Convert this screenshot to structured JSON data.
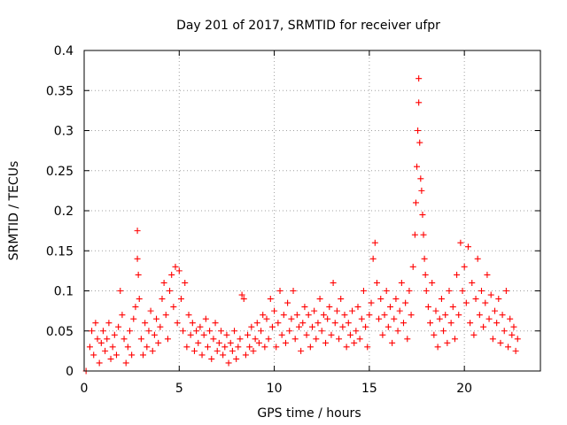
{
  "chart_data": {
    "type": "scatter",
    "title": "Day 201 of 2017, SRMTID for receiver ufpr",
    "xlabel": "GPS time / hours",
    "ylabel": "SRMTID / TECUs",
    "xlim": [
      0,
      24
    ],
    "ylim": [
      0,
      0.4
    ],
    "xticks": [
      0,
      5,
      10,
      15,
      20
    ],
    "xtick_labels": [
      "0",
      "5",
      "10",
      "15",
      "20"
    ],
    "yticks": [
      0,
      0.05,
      0.1,
      0.15,
      0.2,
      0.25,
      0.3,
      0.35,
      0.4
    ],
    "ytick_labels": [
      "0",
      "0.05",
      "0.1",
      "0.15",
      "0.2",
      "0.25",
      "0.3",
      "0.35",
      "0.4"
    ],
    "grid": true,
    "marker": "plus",
    "color": "#ff0000",
    "series": [
      {
        "name": "SRMTID",
        "points": [
          [
            0.1,
            0.0
          ],
          [
            0.3,
            0.03
          ],
          [
            0.4,
            0.05
          ],
          [
            0.5,
            0.02
          ],
          [
            0.6,
            0.06
          ],
          [
            0.7,
            0.04
          ],
          [
            0.8,
            0.01
          ],
          [
            0.9,
            0.035
          ],
          [
            1.0,
            0.05
          ],
          [
            1.1,
            0.025
          ],
          [
            1.2,
            0.04
          ],
          [
            1.3,
            0.06
          ],
          [
            1.4,
            0.015
          ],
          [
            1.5,
            0.03
          ],
          [
            1.6,
            0.045
          ],
          [
            1.7,
            0.02
          ],
          [
            1.8,
            0.055
          ],
          [
            1.9,
            0.1
          ],
          [
            2.0,
            0.07
          ],
          [
            2.1,
            0.04
          ],
          [
            2.2,
            0.01
          ],
          [
            2.3,
            0.03
          ],
          [
            2.4,
            0.05
          ],
          [
            2.5,
            0.02
          ],
          [
            2.6,
            0.065
          ],
          [
            2.7,
            0.08
          ],
          [
            2.8,
            0.175
          ],
          [
            2.8,
            0.14
          ],
          [
            2.85,
            0.12
          ],
          [
            2.9,
            0.09
          ],
          [
            3.0,
            0.04
          ],
          [
            3.1,
            0.02
          ],
          [
            3.2,
            0.06
          ],
          [
            3.3,
            0.03
          ],
          [
            3.4,
            0.05
          ],
          [
            3.5,
            0.075
          ],
          [
            3.6,
            0.025
          ],
          [
            3.7,
            0.045
          ],
          [
            3.8,
            0.065
          ],
          [
            3.9,
            0.035
          ],
          [
            4.0,
            0.055
          ],
          [
            4.1,
            0.09
          ],
          [
            4.2,
            0.11
          ],
          [
            4.3,
            0.07
          ],
          [
            4.4,
            0.04
          ],
          [
            4.5,
            0.1
          ],
          [
            4.6,
            0.12
          ],
          [
            4.7,
            0.08
          ],
          [
            4.8,
            0.13
          ],
          [
            4.9,
            0.06
          ],
          [
            5.0,
            0.125
          ],
          [
            5.1,
            0.09
          ],
          [
            5.2,
            0.05
          ],
          [
            5.3,
            0.11
          ],
          [
            5.4,
            0.03
          ],
          [
            5.5,
            0.07
          ],
          [
            5.6,
            0.045
          ],
          [
            5.7,
            0.06
          ],
          [
            5.8,
            0.025
          ],
          [
            5.9,
            0.05
          ],
          [
            6.0,
            0.035
          ],
          [
            6.1,
            0.055
          ],
          [
            6.2,
            0.02
          ],
          [
            6.3,
            0.045
          ],
          [
            6.4,
            0.065
          ],
          [
            6.5,
            0.03
          ],
          [
            6.6,
            0.05
          ],
          [
            6.7,
            0.015
          ],
          [
            6.8,
            0.04
          ],
          [
            6.9,
            0.06
          ],
          [
            7.0,
            0.025
          ],
          [
            7.1,
            0.035
          ],
          [
            7.2,
            0.05
          ],
          [
            7.3,
            0.02
          ],
          [
            7.4,
            0.03
          ],
          [
            7.5,
            0.045
          ],
          [
            7.6,
            0.01
          ],
          [
            7.7,
            0.035
          ],
          [
            7.8,
            0.025
          ],
          [
            7.9,
            0.05
          ],
          [
            8.0,
            0.015
          ],
          [
            8.1,
            0.03
          ],
          [
            8.2,
            0.04
          ],
          [
            8.3,
            0.095
          ],
          [
            8.4,
            0.09
          ],
          [
            8.5,
            0.02
          ],
          [
            8.6,
            0.045
          ],
          [
            8.7,
            0.03
          ],
          [
            8.8,
            0.055
          ],
          [
            8.9,
            0.025
          ],
          [
            9.0,
            0.04
          ],
          [
            9.1,
            0.06
          ],
          [
            9.2,
            0.035
          ],
          [
            9.3,
            0.05
          ],
          [
            9.4,
            0.07
          ],
          [
            9.5,
            0.03
          ],
          [
            9.6,
            0.065
          ],
          [
            9.7,
            0.04
          ],
          [
            9.8,
            0.09
          ],
          [
            9.9,
            0.055
          ],
          [
            10.0,
            0.075
          ],
          [
            10.1,
            0.03
          ],
          [
            10.2,
            0.06
          ],
          [
            10.3,
            0.1
          ],
          [
            10.4,
            0.045
          ],
          [
            10.5,
            0.07
          ],
          [
            10.6,
            0.035
          ],
          [
            10.7,
            0.085
          ],
          [
            10.8,
            0.05
          ],
          [
            10.9,
            0.065
          ],
          [
            11.0,
            0.1
          ],
          [
            11.1,
            0.04
          ],
          [
            11.2,
            0.07
          ],
          [
            11.3,
            0.055
          ],
          [
            11.4,
            0.025
          ],
          [
            11.5,
            0.06
          ],
          [
            11.6,
            0.08
          ],
          [
            11.7,
            0.045
          ],
          [
            11.8,
            0.07
          ],
          [
            11.9,
            0.03
          ],
          [
            12.0,
            0.055
          ],
          [
            12.1,
            0.075
          ],
          [
            12.2,
            0.04
          ],
          [
            12.3,
            0.06
          ],
          [
            12.4,
            0.09
          ],
          [
            12.5,
            0.05
          ],
          [
            12.6,
            0.07
          ],
          [
            12.7,
            0.035
          ],
          [
            12.8,
            0.065
          ],
          [
            12.9,
            0.08
          ],
          [
            13.0,
            0.045
          ],
          [
            13.1,
            0.11
          ],
          [
            13.2,
            0.06
          ],
          [
            13.3,
            0.075
          ],
          [
            13.4,
            0.04
          ],
          [
            13.5,
            0.09
          ],
          [
            13.6,
            0.055
          ],
          [
            13.7,
            0.07
          ],
          [
            13.8,
            0.03
          ],
          [
            13.9,
            0.06
          ],
          [
            14.0,
            0.045
          ],
          [
            14.1,
            0.075
          ],
          [
            14.2,
            0.035
          ],
          [
            14.3,
            0.05
          ],
          [
            14.4,
            0.08
          ],
          [
            14.5,
            0.04
          ],
          [
            14.6,
            0.065
          ],
          [
            14.7,
            0.1
          ],
          [
            14.8,
            0.055
          ],
          [
            14.9,
            0.03
          ],
          [
            15.0,
            0.07
          ],
          [
            15.1,
            0.085
          ],
          [
            15.2,
            0.14
          ],
          [
            15.3,
            0.16
          ],
          [
            15.4,
            0.11
          ],
          [
            15.5,
            0.065
          ],
          [
            15.6,
            0.09
          ],
          [
            15.7,
            0.045
          ],
          [
            15.8,
            0.07
          ],
          [
            15.9,
            0.1
          ],
          [
            16.0,
            0.055
          ],
          [
            16.1,
            0.08
          ],
          [
            16.2,
            0.035
          ],
          [
            16.3,
            0.065
          ],
          [
            16.4,
            0.09
          ],
          [
            16.5,
            0.05
          ],
          [
            16.6,
            0.075
          ],
          [
            16.7,
            0.11
          ],
          [
            16.8,
            0.06
          ],
          [
            16.9,
            0.085
          ],
          [
            17.0,
            0.04
          ],
          [
            17.1,
            0.1
          ],
          [
            17.2,
            0.07
          ],
          [
            17.3,
            0.13
          ],
          [
            17.4,
            0.17
          ],
          [
            17.45,
            0.21
          ],
          [
            17.5,
            0.255
          ],
          [
            17.55,
            0.3
          ],
          [
            17.6,
            0.365
          ],
          [
            17.6,
            0.335
          ],
          [
            17.65,
            0.285
          ],
          [
            17.7,
            0.24
          ],
          [
            17.75,
            0.225
          ],
          [
            17.8,
            0.195
          ],
          [
            17.85,
            0.17
          ],
          [
            17.9,
            0.14
          ],
          [
            17.95,
            0.12
          ],
          [
            18.0,
            0.1
          ],
          [
            18.1,
            0.08
          ],
          [
            18.2,
            0.06
          ],
          [
            18.3,
            0.11
          ],
          [
            18.4,
            0.045
          ],
          [
            18.5,
            0.075
          ],
          [
            18.6,
            0.03
          ],
          [
            18.7,
            0.065
          ],
          [
            18.8,
            0.09
          ],
          [
            18.9,
            0.05
          ],
          [
            19.0,
            0.07
          ],
          [
            19.1,
            0.035
          ],
          [
            19.2,
            0.1
          ],
          [
            19.3,
            0.06
          ],
          [
            19.4,
            0.08
          ],
          [
            19.5,
            0.04
          ],
          [
            19.6,
            0.12
          ],
          [
            19.7,
            0.07
          ],
          [
            19.8,
            0.16
          ],
          [
            19.9,
            0.1
          ],
          [
            20.0,
            0.13
          ],
          [
            20.1,
            0.085
          ],
          [
            20.2,
            0.155
          ],
          [
            20.3,
            0.06
          ],
          [
            20.4,
            0.11
          ],
          [
            20.5,
            0.045
          ],
          [
            20.6,
            0.09
          ],
          [
            20.7,
            0.14
          ],
          [
            20.8,
            0.07
          ],
          [
            20.9,
            0.1
          ],
          [
            21.0,
            0.055
          ],
          [
            21.1,
            0.085
          ],
          [
            21.2,
            0.12
          ],
          [
            21.3,
            0.065
          ],
          [
            21.4,
            0.095
          ],
          [
            21.5,
            0.04
          ],
          [
            21.6,
            0.075
          ],
          [
            21.7,
            0.06
          ],
          [
            21.8,
            0.09
          ],
          [
            21.9,
            0.035
          ],
          [
            22.0,
            0.07
          ],
          [
            22.1,
            0.05
          ],
          [
            22.2,
            0.1
          ],
          [
            22.3,
            0.03
          ],
          [
            22.4,
            0.065
          ],
          [
            22.5,
            0.045
          ],
          [
            22.6,
            0.055
          ],
          [
            22.7,
            0.025
          ],
          [
            22.8,
            0.04
          ]
        ]
      }
    ]
  }
}
